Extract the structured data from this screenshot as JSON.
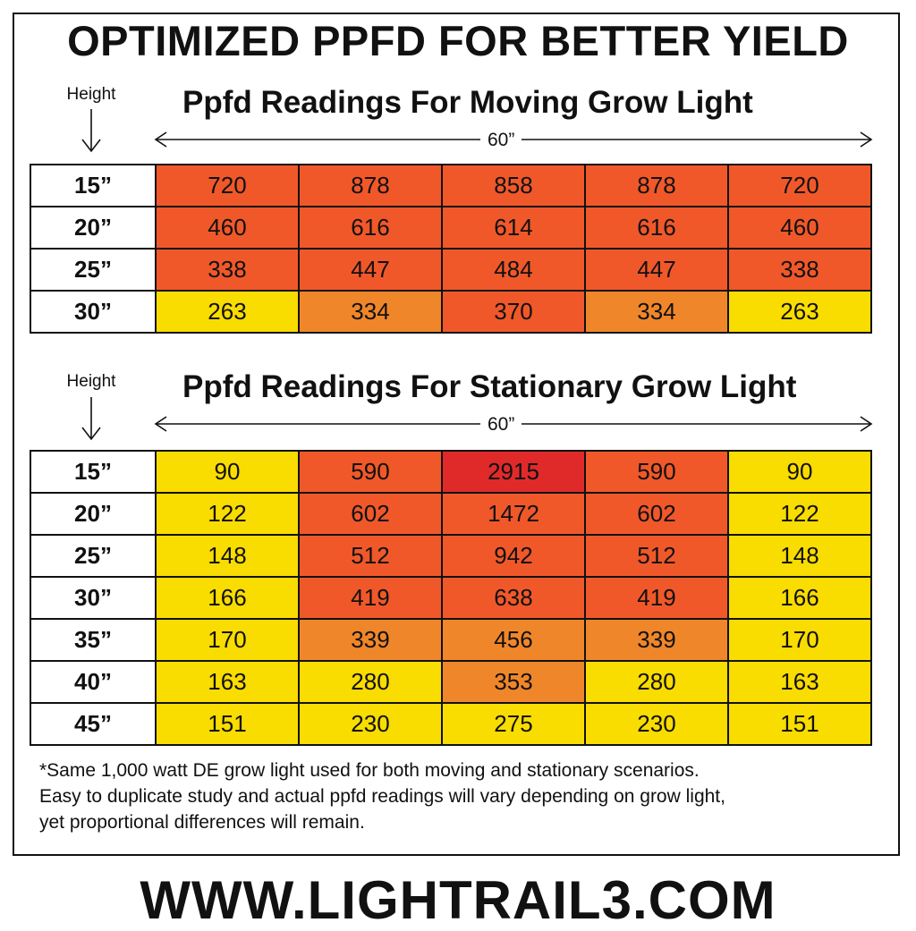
{
  "title": "OPTIMIZED PPFD FOR BETTER YIELD",
  "colors": {
    "yellow": "#F9DC00",
    "orange": "#F0862A",
    "red_orange": "#F0582A",
    "red": "#E02A2A"
  },
  "chart_data": [
    {
      "type": "table",
      "title": "Ppfd Readings For Moving Grow Light",
      "row_axis_label": "Height",
      "span_label": "60”",
      "rows": [
        {
          "height": "15”",
          "values": [
            "720",
            "878",
            "858",
            "878",
            "720"
          ],
          "colors": [
            "red_orange",
            "red_orange",
            "red_orange",
            "red_orange",
            "red_orange"
          ]
        },
        {
          "height": "20”",
          "values": [
            "460",
            "616",
            "614",
            "616",
            "460"
          ],
          "colors": [
            "red_orange",
            "red_orange",
            "red_orange",
            "red_orange",
            "red_orange"
          ]
        },
        {
          "height": "25”",
          "values": [
            "338",
            "447",
            "484",
            "447",
            "338"
          ],
          "colors": [
            "red_orange",
            "red_orange",
            "red_orange",
            "red_orange",
            "red_orange"
          ]
        },
        {
          "height": "30”",
          "values": [
            "263",
            "334",
            "370",
            "334",
            "263"
          ],
          "colors": [
            "yellow",
            "orange",
            "red_orange",
            "orange",
            "yellow"
          ]
        }
      ]
    },
    {
      "type": "table",
      "title": "Ppfd Readings For Stationary Grow Light",
      "row_axis_label": "Height",
      "span_label": "60”",
      "rows": [
        {
          "height": "15”",
          "values": [
            "90",
            "590",
            "2915",
            "590",
            "90"
          ],
          "colors": [
            "yellow",
            "red_orange",
            "red",
            "red_orange",
            "yellow"
          ]
        },
        {
          "height": "20”",
          "values": [
            "122",
            "602",
            "1472",
            "602",
            "122"
          ],
          "colors": [
            "yellow",
            "red_orange",
            "red_orange",
            "red_orange",
            "yellow"
          ]
        },
        {
          "height": "25”",
          "values": [
            "148",
            "512",
            "942",
            "512",
            "148"
          ],
          "colors": [
            "yellow",
            "red_orange",
            "red_orange",
            "red_orange",
            "yellow"
          ]
        },
        {
          "height": "30”",
          "values": [
            "166",
            "419",
            "638",
            "419",
            "166"
          ],
          "colors": [
            "yellow",
            "red_orange",
            "red_orange",
            "red_orange",
            "yellow"
          ]
        },
        {
          "height": "35”",
          "values": [
            "170",
            "339",
            "456",
            "339",
            "170"
          ],
          "colors": [
            "yellow",
            "orange",
            "orange",
            "orange",
            "yellow"
          ]
        },
        {
          "height": "40”",
          "values": [
            "163",
            "280",
            "353",
            "280",
            "163"
          ],
          "colors": [
            "yellow",
            "yellow",
            "orange",
            "yellow",
            "yellow"
          ]
        },
        {
          "height": "45”",
          "values": [
            "151",
            "230",
            "275",
            "230",
            "151"
          ],
          "colors": [
            "yellow",
            "yellow",
            "yellow",
            "yellow",
            "yellow"
          ]
        }
      ]
    }
  ],
  "footnote": [
    "*Same 1,000 watt DE grow light used for both moving and stationary scenarios.",
    "Easy to duplicate study and actual ppfd readings will vary depending on grow light,",
    "yet proportional differences will remain."
  ],
  "website": "WWW.LIGHTRAIL3.COM"
}
